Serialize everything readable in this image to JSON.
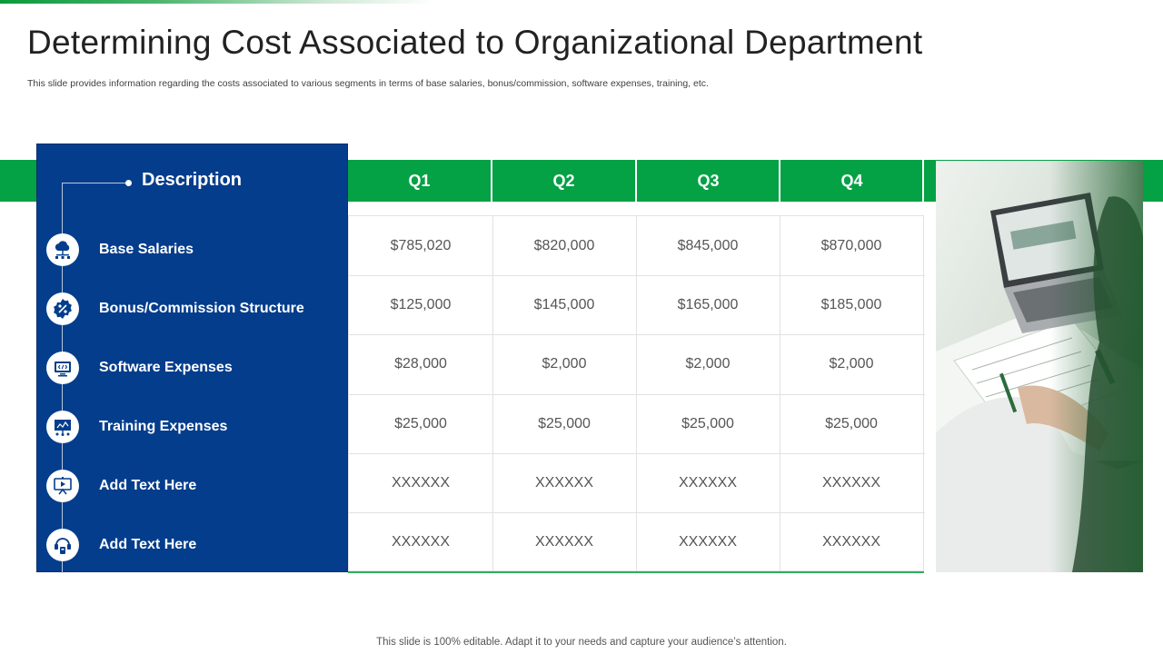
{
  "slide": {
    "title": "Determining Cost Associated to Organizational Department",
    "subtitle": "This slide provides information regarding the costs associated to various segments in terms of base salaries, bonus/commission, software expenses, training, etc.",
    "footer": "This slide is 100% editable. Adapt it to your needs and capture your audience’s attention."
  },
  "colors": {
    "accent_green": "#05a145",
    "panel_blue": "#043d8c"
  },
  "table": {
    "description_header": "Description",
    "quarters": [
      "Q1",
      "Q2",
      "Q3",
      "Q4"
    ],
    "rows": [
      {
        "label": "Base Salaries",
        "icon": "cloud-network-icon",
        "values": [
          "$785,020",
          "$820,000",
          "$845,000",
          "$870,000"
        ]
      },
      {
        "label": "Bonus/Commission Structure",
        "icon": "percent-badge-icon",
        "values": [
          "$125,000",
          "$145,000",
          "$165,000",
          "$185,000"
        ]
      },
      {
        "label": "Software Expenses",
        "icon": "computer-code-icon",
        "values": [
          "$28,000",
          "$2,000",
          "$2,000",
          "$2,000"
        ]
      },
      {
        "label": "Training Expenses",
        "icon": "presentation-screen-icon",
        "values": [
          "$25,000",
          "$25,000",
          "$25,000",
          "$25,000"
        ]
      },
      {
        "label": "Add Text Here",
        "icon": "training-board-icon",
        "values": [
          "XXXXXX",
          "XXXXXX",
          "XXXXXX",
          "XXXXXX"
        ]
      },
      {
        "label": "Add Text Here",
        "icon": "headset-tools-icon",
        "values": [
          "XXXXXX",
          "XXXXXX",
          "XXXXXX",
          "XXXXXX"
        ]
      }
    ]
  }
}
